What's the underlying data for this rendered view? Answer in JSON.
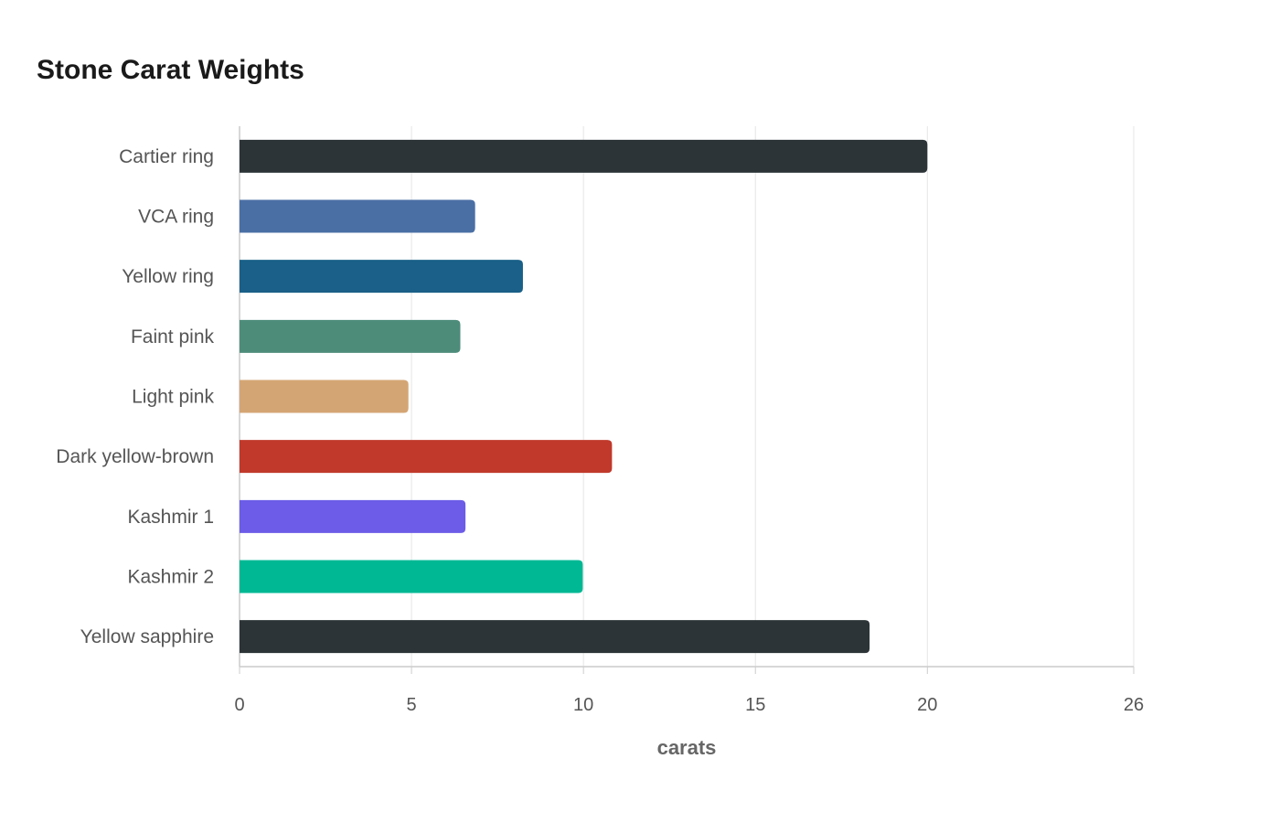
{
  "chart_data": {
    "type": "bar",
    "orientation": "horizontal",
    "title": "Stone Carat Weights",
    "xlabel": "carats",
    "ylabel": "",
    "categories": [
      "Cartier ring",
      "VCA ring",
      "Yellow ring",
      "Faint pink",
      "Light pink",
      "Dark yellow-brown",
      "Kashmir 1",
      "Kashmir 2",
      "Yellow sapphire"
    ],
    "values": [
      20.0,
      6.85,
      8.24,
      6.42,
      4.91,
      10.83,
      6.57,
      9.98,
      18.32
    ],
    "colors": [
      "#2c3437",
      "#4a6fa5",
      "#1a6088",
      "#4e8c7a",
      "#d4a574",
      "#c0392b",
      "#6c5ce7",
      "#00b894",
      "#2c3437"
    ],
    "xlim": [
      0,
      26
    ],
    "xticks": [
      0,
      5,
      10,
      15,
      20,
      26
    ],
    "grid": true,
    "legend": "none"
  }
}
